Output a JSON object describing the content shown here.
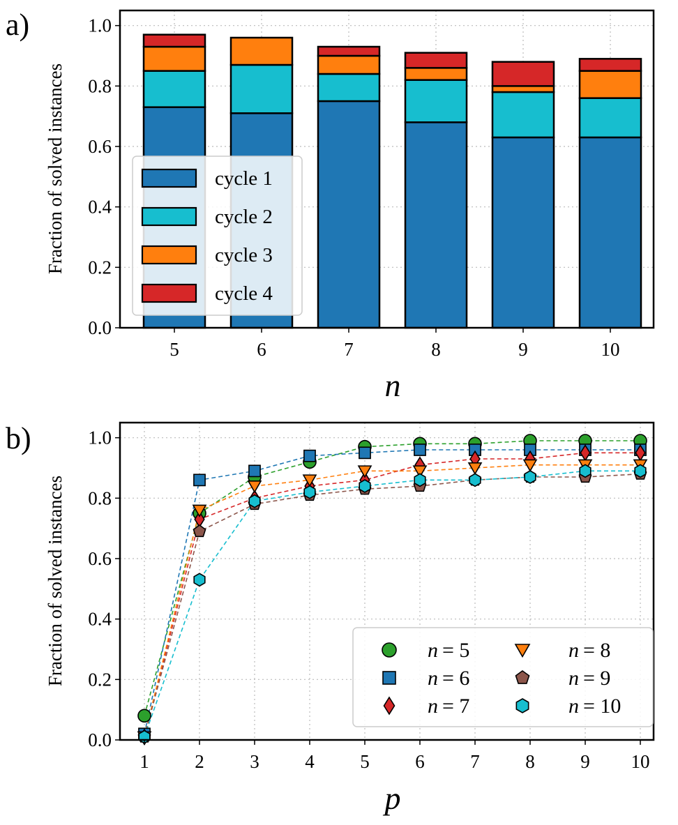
{
  "chart_data": [
    {
      "panel_label": "a)",
      "type": "bar",
      "stacked": true,
      "categories": [
        "5",
        "6",
        "7",
        "8",
        "9",
        "10"
      ],
      "series": [
        {
          "name": "cycle 1",
          "color": "#1f77b4",
          "values": [
            0.73,
            0.71,
            0.75,
            0.68,
            0.63,
            0.63
          ]
        },
        {
          "name": "cycle 2",
          "color": "#17becf",
          "values": [
            0.12,
            0.16,
            0.09,
            0.14,
            0.15,
            0.13
          ]
        },
        {
          "name": "cycle 3",
          "color": "#ff7f0e",
          "values": [
            0.08,
            0.09,
            0.06,
            0.04,
            0.02,
            0.09
          ]
        },
        {
          "name": "cycle 4",
          "color": "#d62728",
          "values": [
            0.04,
            0.0,
            0.03,
            0.05,
            0.08,
            0.04
          ]
        }
      ],
      "xlabel": "n",
      "ylabel": "Fraction of solved instances",
      "ylim": [
        0.0,
        1.05
      ],
      "yticks": [
        "0.0",
        "0.2",
        "0.4",
        "0.6",
        "0.8",
        "1.0"
      ],
      "grid": true,
      "legend_position": "center-left"
    },
    {
      "panel_label": "b)",
      "type": "line",
      "x": [
        1,
        2,
        3,
        4,
        5,
        6,
        7,
        8,
        9,
        10
      ],
      "xticks": [
        "1",
        "2",
        "3",
        "4",
        "5",
        "6",
        "7",
        "8",
        "9",
        "10"
      ],
      "series": [
        {
          "name": "n = 5",
          "n": "5",
          "marker": "circle",
          "color": "#2ca02c",
          "values": [
            0.08,
            0.75,
            0.87,
            0.92,
            0.97,
            0.98,
            0.98,
            0.99,
            0.99,
            0.99
          ]
        },
        {
          "name": "n = 6",
          "n": "6",
          "marker": "square",
          "color": "#1f77b4",
          "values": [
            0.02,
            0.86,
            0.89,
            0.94,
            0.95,
            0.96,
            0.96,
            0.96,
            0.96,
            0.96
          ]
        },
        {
          "name": "n = 7",
          "n": "7",
          "marker": "diamond",
          "color": "#d62728",
          "values": [
            0.01,
            0.73,
            0.8,
            0.84,
            0.86,
            0.91,
            0.93,
            0.93,
            0.95,
            0.95
          ]
        },
        {
          "name": "n = 8",
          "n": "8",
          "marker": "triangle-down",
          "color": "#ff7f0e",
          "values": [
            0.01,
            0.76,
            0.84,
            0.86,
            0.89,
            0.89,
            0.9,
            0.91,
            0.91,
            0.91
          ]
        },
        {
          "name": "n = 9",
          "n": "9",
          "marker": "pentagon",
          "color": "#8c564b",
          "values": [
            0.01,
            0.69,
            0.78,
            0.81,
            0.83,
            0.84,
            0.86,
            0.87,
            0.87,
            0.88
          ]
        },
        {
          "name": "n = 10",
          "n": "10",
          "marker": "hexagon",
          "color": "#17becf",
          "values": [
            0.01,
            0.53,
            0.79,
            0.82,
            0.84,
            0.86,
            0.86,
            0.87,
            0.89,
            0.89
          ]
        }
      ],
      "xlabel": "p",
      "ylabel": "Fraction of solved instances",
      "ylim": [
        0.0,
        1.05
      ],
      "yticks": [
        "0.0",
        "0.2",
        "0.4",
        "0.6",
        "0.8",
        "1.0"
      ],
      "grid": true,
      "legend_position": "lower-right"
    }
  ]
}
